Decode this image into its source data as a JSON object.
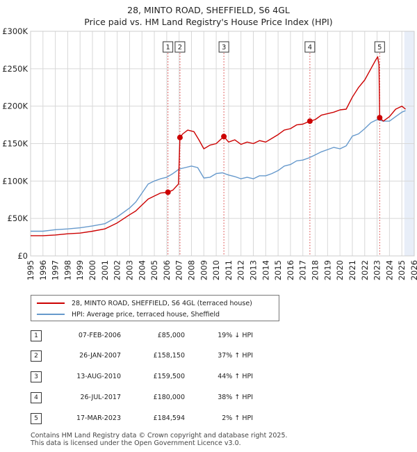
{
  "title_line1": "28, MINTO ROAD, SHEFFIELD, S6 4GL",
  "title_line2": "Price paid vs. HM Land Registry's House Price Index (HPI)",
  "colors": {
    "property": "#cc0000",
    "hpi": "#6699cc",
    "grid": "#d8d8d8",
    "band": "#e8eef8",
    "vline": "#e06666"
  },
  "chart_data": {
    "type": "line",
    "xlim": [
      1995,
      2026
    ],
    "ylim": [
      0,
      300000
    ],
    "yticks": [
      0,
      50000,
      100000,
      150000,
      200000,
      250000,
      300000
    ],
    "ytick_labels": [
      "£0",
      "£50K",
      "£100K",
      "£150K",
      "£200K",
      "£250K",
      "£300K"
    ],
    "xticks": [
      1995,
      1996,
      1997,
      1998,
      1999,
      2000,
      2001,
      2002,
      2003,
      2004,
      2005,
      2006,
      2007,
      2008,
      2009,
      2010,
      2011,
      2012,
      2013,
      2014,
      2015,
      2016,
      2017,
      2018,
      2019,
      2020,
      2021,
      2022,
      2023,
      2024,
      2025,
      2026
    ],
    "shaded_from": 2025.2,
    "series": [
      {
        "name": "28, MINTO ROAD, SHEFFIELD, S6 4GL (terraced house)",
        "color": "#cc0000",
        "points": [
          [
            1995.0,
            27000
          ],
          [
            1996.0,
            27000
          ],
          [
            1997.0,
            28000
          ],
          [
            1998.0,
            29500
          ],
          [
            1999.0,
            30500
          ],
          [
            2000.0,
            33000
          ],
          [
            2001.0,
            36000
          ],
          [
            2002.0,
            44000
          ],
          [
            2003.0,
            55000
          ],
          [
            2003.5,
            60000
          ],
          [
            2004.0,
            68000
          ],
          [
            2004.5,
            76000
          ],
          [
            2005.0,
            80000
          ],
          [
            2005.5,
            84000
          ],
          [
            2006.1,
            85000
          ],
          [
            2006.5,
            88000
          ],
          [
            2006.95,
            96000
          ],
          [
            2007.07,
            158150
          ],
          [
            2007.3,
            163000
          ],
          [
            2007.7,
            168000
          ],
          [
            2008.2,
            166000
          ],
          [
            2008.6,
            155000
          ],
          [
            2009.0,
            143000
          ],
          [
            2009.5,
            148000
          ],
          [
            2010.0,
            150000
          ],
          [
            2010.62,
            159500
          ],
          [
            2011.0,
            152000
          ],
          [
            2011.5,
            155000
          ],
          [
            2012.0,
            149000
          ],
          [
            2012.5,
            152000
          ],
          [
            2013.0,
            150000
          ],
          [
            2013.5,
            154000
          ],
          [
            2014.0,
            152000
          ],
          [
            2014.5,
            157000
          ],
          [
            2015.0,
            162000
          ],
          [
            2015.5,
            168000
          ],
          [
            2016.0,
            170000
          ],
          [
            2016.5,
            175000
          ],
          [
            2017.0,
            176000
          ],
          [
            2017.57,
            180000
          ],
          [
            2018.0,
            182000
          ],
          [
            2018.5,
            188000
          ],
          [
            2019.0,
            190000
          ],
          [
            2019.5,
            192000
          ],
          [
            2020.0,
            195000
          ],
          [
            2020.5,
            196000
          ],
          [
            2021.0,
            212000
          ],
          [
            2021.5,
            225000
          ],
          [
            2022.0,
            235000
          ],
          [
            2022.5,
            250000
          ],
          [
            2022.9,
            262000
          ],
          [
            2023.05,
            266000
          ],
          [
            2023.15,
            255000
          ],
          [
            2023.21,
            184594
          ],
          [
            2023.5,
            180000
          ],
          [
            2024.0,
            186000
          ],
          [
            2024.5,
            196000
          ],
          [
            2025.0,
            200000
          ],
          [
            2025.3,
            196000
          ]
        ]
      },
      {
        "name": "HPI: Average price, terraced house, Sheffield",
        "color": "#6699cc",
        "points": [
          [
            1995.0,
            33000
          ],
          [
            1996.0,
            33000
          ],
          [
            1997.0,
            35000
          ],
          [
            1998.0,
            36000
          ],
          [
            1999.0,
            37500
          ],
          [
            2000.0,
            40000
          ],
          [
            2001.0,
            43000
          ],
          [
            2002.0,
            52000
          ],
          [
            2003.0,
            64000
          ],
          [
            2003.5,
            72000
          ],
          [
            2004.0,
            84000
          ],
          [
            2004.5,
            96000
          ],
          [
            2005.0,
            100000
          ],
          [
            2005.5,
            103000
          ],
          [
            2006.0,
            105000
          ],
          [
            2006.5,
            110000
          ],
          [
            2007.0,
            116000
          ],
          [
            2007.5,
            118000
          ],
          [
            2008.0,
            120000
          ],
          [
            2008.5,
            118000
          ],
          [
            2009.0,
            104000
          ],
          [
            2009.5,
            105000
          ],
          [
            2010.0,
            110000
          ],
          [
            2010.5,
            111000
          ],
          [
            2011.0,
            108000
          ],
          [
            2011.5,
            106000
          ],
          [
            2012.0,
            103000
          ],
          [
            2012.5,
            105000
          ],
          [
            2013.0,
            103000
          ],
          [
            2013.5,
            107000
          ],
          [
            2014.0,
            107000
          ],
          [
            2014.5,
            110000
          ],
          [
            2015.0,
            114000
          ],
          [
            2015.5,
            120000
          ],
          [
            2016.0,
            122000
          ],
          [
            2016.5,
            127000
          ],
          [
            2017.0,
            128000
          ],
          [
            2017.5,
            131000
          ],
          [
            2018.0,
            135000
          ],
          [
            2018.5,
            139000
          ],
          [
            2019.0,
            142000
          ],
          [
            2019.5,
            145000
          ],
          [
            2020.0,
            143000
          ],
          [
            2020.5,
            147000
          ],
          [
            2021.0,
            160000
          ],
          [
            2021.5,
            163000
          ],
          [
            2022.0,
            170000
          ],
          [
            2022.5,
            178000
          ],
          [
            2023.0,
            182000
          ],
          [
            2023.5,
            180000
          ],
          [
            2024.0,
            180000
          ],
          [
            2024.5,
            186000
          ],
          [
            2025.0,
            192000
          ],
          [
            2025.3,
            194000
          ]
        ]
      }
    ],
    "sales": [
      {
        "n": "1",
        "x": 2006.1,
        "y": 85000
      },
      {
        "n": "2",
        "x": 2007.07,
        "y": 158150
      },
      {
        "n": "3",
        "x": 2010.62,
        "y": 159500
      },
      {
        "n": "4",
        "x": 2017.57,
        "y": 180000
      },
      {
        "n": "5",
        "x": 2023.21,
        "y": 184594
      }
    ]
  },
  "legend": {
    "property_label": "28, MINTO ROAD, SHEFFIELD, S6 4GL (terraced house)",
    "hpi_label": "HPI: Average price, terraced house, Sheffield"
  },
  "transactions": [
    {
      "n": "1",
      "date": "07-FEB-2006",
      "price": "£85,000",
      "hpi": "19% ↓ HPI"
    },
    {
      "n": "2",
      "date": "26-JAN-2007",
      "price": "£158,150",
      "hpi": "37% ↑ HPI"
    },
    {
      "n": "3",
      "date": "13-AUG-2010",
      "price": "£159,500",
      "hpi": "44% ↑ HPI"
    },
    {
      "n": "4",
      "date": "26-JUL-2017",
      "price": "£180,000",
      "hpi": "38% ↑ HPI"
    },
    {
      "n": "5",
      "date": "17-MAR-2023",
      "price": "£184,594",
      "hpi": "2% ↑ HPI"
    }
  ],
  "footer_line1": "Contains HM Land Registry data © Crown copyright and database right 2025.",
  "footer_line2": "This data is licensed under the Open Government Licence v3.0."
}
